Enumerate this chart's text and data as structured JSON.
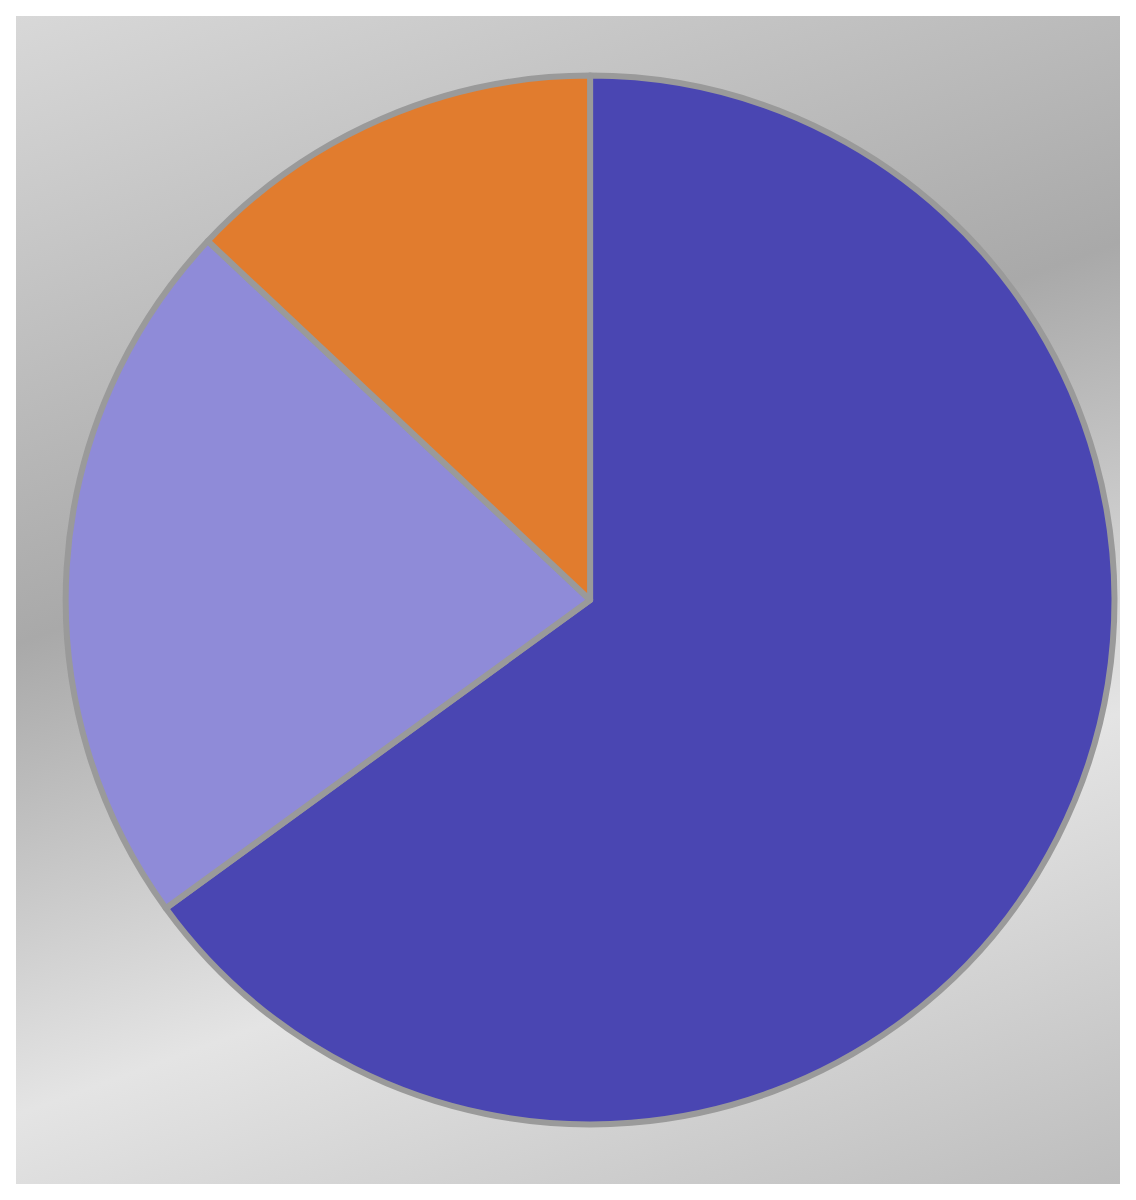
{
  "chart_data": {
    "type": "pie",
    "categories": [
      null,
      null,
      null
    ],
    "values": [
      65,
      22,
      13
    ],
    "colors": [
      "#4a46b2",
      "#8f8bd8",
      "#e17c2e"
    ]
  }
}
